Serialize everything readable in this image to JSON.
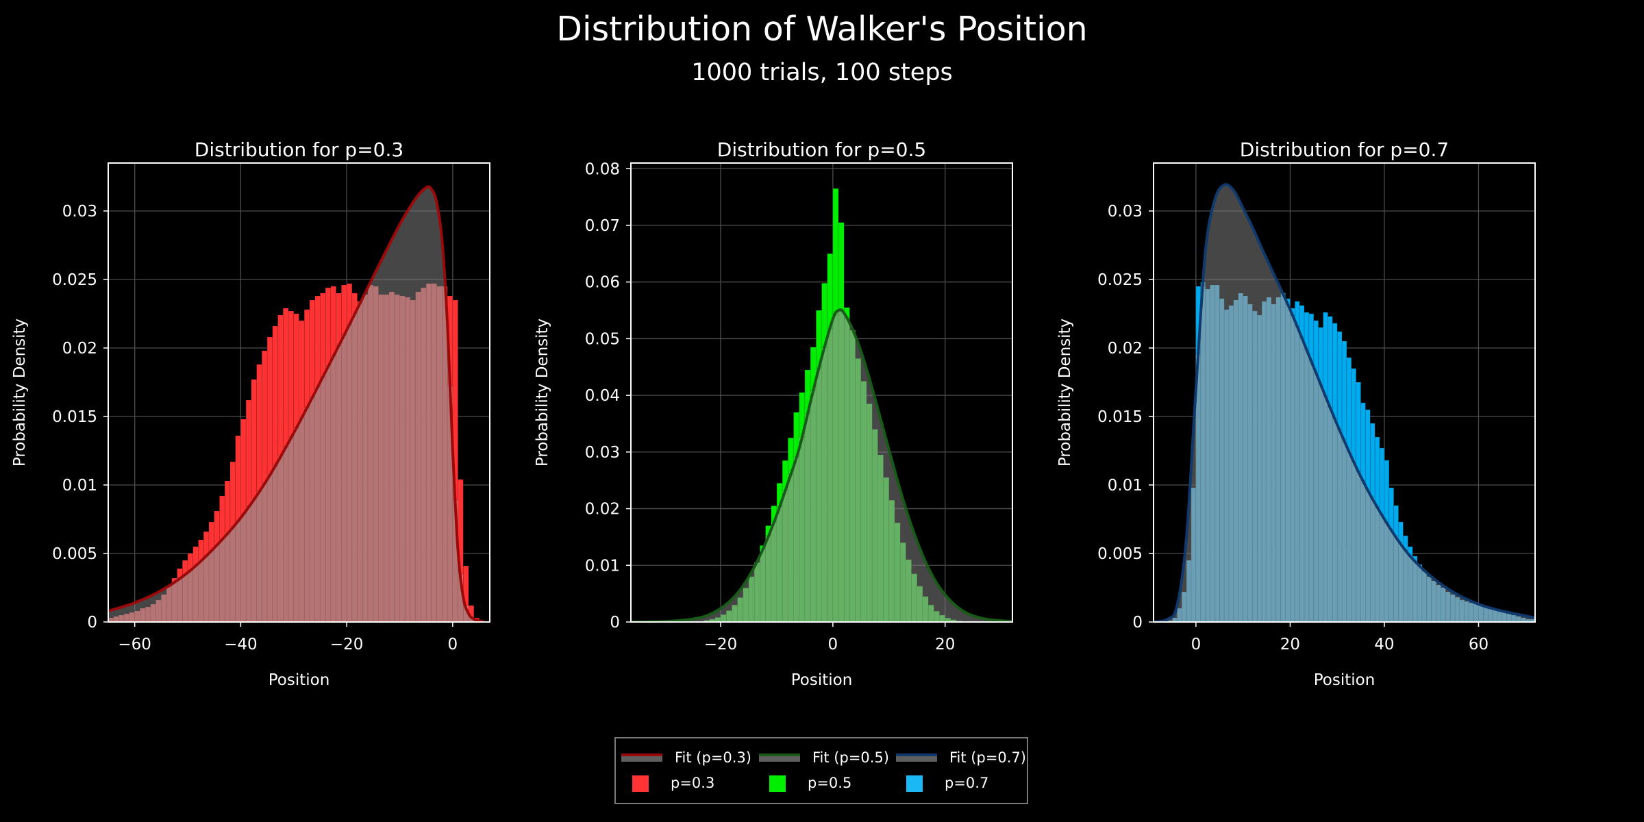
{
  "title": "Distribution of Walker's Position",
  "subtitle": "1000 trials, 100 steps",
  "chart_data": [
    {
      "type": "bar",
      "title": "Distribution for p=0.3",
      "xlabel": "Position",
      "ylabel": "Probability Density",
      "series_label": "p=0.3",
      "fit_label": "Fit (p=0.3)",
      "colors": {
        "bar": "#ff3333",
        "bar_in_fit": "#f66464",
        "fit_line": "#9b0a0a"
      },
      "xlim": [
        -65,
        7
      ],
      "ylim": [
        0,
        0.0335
      ],
      "xticks": [
        -60,
        -40,
        -20,
        0
      ],
      "xtick_labels": [
        "−60",
        "−40",
        "−20",
        "0"
      ],
      "yticks": [
        0,
        0.005,
        0.01,
        0.015,
        0.02,
        0.025,
        0.03
      ],
      "ytick_labels": [
        "0",
        "0.005",
        "0.01",
        "0.015",
        "0.02",
        "0.025",
        "0.03"
      ],
      "grid": true,
      "bin_width": 1,
      "x": [
        -65,
        -64,
        -63,
        -62,
        -61,
        -60,
        -59,
        -58,
        -57,
        -56,
        -55,
        -54,
        -53,
        -52,
        -51,
        -50,
        -49,
        -48,
        -47,
        -46,
        -45,
        -44,
        -43,
        -42,
        -41,
        -40,
        -39,
        -38,
        -37,
        -36,
        -35,
        -34,
        -33,
        -32,
        -31,
        -30,
        -29,
        -28,
        -27,
        -26,
        -25,
        -24,
        -23,
        -22,
        -21,
        -20,
        -19,
        -18,
        -17,
        -16,
        -15,
        -14,
        -13,
        -12,
        -11,
        -10,
        -9,
        -8,
        -7,
        -6,
        -5,
        -4,
        -3,
        -2,
        -1,
        0,
        1,
        2,
        3,
        4,
        5
      ],
      "values": [
        0.0003,
        0.0004,
        0.0005,
        0.0006,
        0.0007,
        0.0008,
        0.001,
        0.0011,
        0.0013,
        0.0016,
        0.002,
        0.0026,
        0.0032,
        0.0039,
        0.0045,
        0.005,
        0.0055,
        0.006,
        0.0066,
        0.0073,
        0.0081,
        0.0092,
        0.0103,
        0.0117,
        0.0136,
        0.0148,
        0.0162,
        0.0177,
        0.0188,
        0.0198,
        0.0208,
        0.0216,
        0.0224,
        0.0229,
        0.0227,
        0.0225,
        0.022,
        0.0228,
        0.0235,
        0.0238,
        0.024,
        0.0244,
        0.0245,
        0.024,
        0.0246,
        0.0247,
        0.024,
        0.0234,
        0.0239,
        0.0246,
        0.0245,
        0.0239,
        0.0239,
        0.0241,
        0.0239,
        0.0238,
        0.0237,
        0.0235,
        0.0241,
        0.0244,
        0.0247,
        0.0247,
        0.0245,
        0.0245,
        0.0238,
        0.0235,
        0.0104,
        0.0041,
        0.0012,
        0.0003,
        0.0001
      ],
      "fit_x": [
        -65,
        -60,
        -55,
        -50,
        -45,
        -40,
        -35,
        -30,
        -25,
        -20,
        -15,
        -10,
        -7,
        -5,
        -4,
        -3,
        -2,
        -1,
        0,
        1,
        2,
        3,
        4,
        5,
        6
      ],
      "fit_y": [
        0.0008,
        0.0014,
        0.0023,
        0.0036,
        0.0054,
        0.0076,
        0.0104,
        0.0138,
        0.0175,
        0.0213,
        0.0252,
        0.029,
        0.0309,
        0.0317,
        0.0316,
        0.0306,
        0.0278,
        0.0218,
        0.0126,
        0.0052,
        0.0018,
        0.0006,
        0.0002,
        0.0001,
        0.0
      ]
    },
    {
      "type": "bar",
      "title": "Distribution for p=0.5",
      "xlabel": "Position",
      "ylabel": "Probability Density",
      "series_label": "p=0.5",
      "fit_label": "Fit (p=0.5)",
      "colors": {
        "bar": "#00ee00",
        "bar_in_fit": "#44ee44",
        "fit_line": "#185a18"
      },
      "xlim": [
        -36,
        32
      ],
      "ylim": [
        0,
        0.081
      ],
      "xticks": [
        -20,
        0,
        20
      ],
      "xtick_labels": [
        "−20",
        "0",
        "20"
      ],
      "yticks": [
        0,
        0.01,
        0.02,
        0.03,
        0.04,
        0.05,
        0.06,
        0.07,
        0.08
      ],
      "ytick_labels": [
        "0",
        "0.01",
        "0.02",
        "0.03",
        "0.04",
        "0.05",
        "0.06",
        "0.07",
        "0.08"
      ],
      "grid": true,
      "bin_width": 1,
      "x": [
        -23,
        -22,
        -21,
        -20,
        -19,
        -18,
        -17,
        -16,
        -15,
        -14,
        -13,
        -12,
        -11,
        -10,
        -9,
        -8,
        -7,
        -6,
        -5,
        -4,
        -3,
        -2,
        -1,
        0,
        1,
        2,
        3,
        4,
        5,
        6,
        7,
        8,
        9,
        10,
        11,
        12,
        13,
        14,
        15,
        16,
        17,
        18,
        19,
        20,
        21,
        22
      ],
      "values": [
        0.0003,
        0.0005,
        0.0008,
        0.0013,
        0.002,
        0.003,
        0.0043,
        0.006,
        0.008,
        0.0105,
        0.0135,
        0.017,
        0.0205,
        0.0245,
        0.0285,
        0.0325,
        0.037,
        0.0405,
        0.0445,
        0.0485,
        0.055,
        0.0598,
        0.065,
        0.0765,
        0.0705,
        0.0555,
        0.0515,
        0.0465,
        0.0425,
        0.0385,
        0.034,
        0.0295,
        0.0255,
        0.0215,
        0.0175,
        0.014,
        0.011,
        0.0085,
        0.0063,
        0.0045,
        0.003,
        0.0019,
        0.0012,
        0.0007,
        0.0004,
        0.0002
      ],
      "fit_x": [
        -36,
        -30,
        -26,
        -24,
        -22,
        -20,
        -18,
        -16,
        -14,
        -12,
        -10,
        -8,
        -6,
        -4,
        -2,
        0,
        1,
        2,
        4,
        6,
        8,
        10,
        12,
        14,
        16,
        18,
        20,
        22,
        24,
        26,
        28,
        32
      ],
      "fit_y": [
        0.0,
        0.0001,
        0.0004,
        0.0007,
        0.0013,
        0.0024,
        0.004,
        0.0064,
        0.0097,
        0.0139,
        0.0189,
        0.0246,
        0.0306,
        0.0388,
        0.0467,
        0.0535,
        0.055,
        0.0545,
        0.0505,
        0.0447,
        0.0377,
        0.0304,
        0.0233,
        0.017,
        0.0118,
        0.0077,
        0.0048,
        0.0028,
        0.0015,
        0.0008,
        0.0004,
        0.0001
      ]
    },
    {
      "type": "bar",
      "title": "Distribution for p=0.7",
      "xlabel": "Position",
      "ylabel": "Probability Density",
      "series_label": "p=0.7",
      "fit_label": "Fit (p=0.7)",
      "colors": {
        "bar": "#00aaee",
        "bar_in_fit": "#4ec3f5",
        "fit_line": "#103a6e"
      },
      "xlim": [
        -9,
        72
      ],
      "ylim": [
        0,
        0.0335
      ],
      "xticks": [
        0,
        20,
        40,
        60
      ],
      "xtick_labels": [
        "0",
        "20",
        "40",
        "60"
      ],
      "yticks": [
        0,
        0.005,
        0.01,
        0.015,
        0.02,
        0.025,
        0.03
      ],
      "ytick_labels": [
        "0",
        "0.005",
        "0.01",
        "0.015",
        "0.02",
        "0.025",
        "0.03"
      ],
      "grid": true,
      "bin_width": 1,
      "x": [
        -6,
        -5,
        -4,
        -3,
        -2,
        -1,
        0,
        1,
        2,
        3,
        4,
        5,
        6,
        7,
        8,
        9,
        10,
        11,
        12,
        13,
        14,
        15,
        16,
        17,
        18,
        19,
        20,
        21,
        22,
        23,
        24,
        25,
        26,
        27,
        28,
        29,
        30,
        31,
        32,
        33,
        34,
        35,
        36,
        37,
        38,
        39,
        40,
        41,
        42,
        43,
        44,
        45,
        46,
        47,
        48,
        49,
        50,
        51,
        52,
        53,
        54,
        55,
        56,
        57,
        58,
        59,
        60,
        61,
        62,
        63,
        64,
        65,
        66,
        67,
        68,
        69,
        70,
        71
      ],
      "values": [
        0.0001,
        0.0003,
        0.001,
        0.0022,
        0.0045,
        0.0098,
        0.0245,
        0.0248,
        0.0243,
        0.0246,
        0.0246,
        0.0236,
        0.0228,
        0.0231,
        0.0235,
        0.024,
        0.0238,
        0.0232,
        0.0227,
        0.0224,
        0.0234,
        0.0237,
        0.0232,
        0.0237,
        0.024,
        0.0236,
        0.0229,
        0.0234,
        0.0231,
        0.0226,
        0.0225,
        0.022,
        0.0215,
        0.0226,
        0.0223,
        0.0218,
        0.0212,
        0.0205,
        0.0193,
        0.0185,
        0.0175,
        0.016,
        0.0155,
        0.0145,
        0.0135,
        0.0127,
        0.0118,
        0.0098,
        0.0085,
        0.0073,
        0.0063,
        0.0055,
        0.0048,
        0.0042,
        0.0037,
        0.0033,
        0.003,
        0.0027,
        0.0025,
        0.0022,
        0.002,
        0.0018,
        0.0016,
        0.0015,
        0.0014,
        0.0013,
        0.0012,
        0.0011,
        0.001,
        0.0009,
        0.0008,
        0.0007,
        0.0006,
        0.0005,
        0.0004,
        0.0003,
        0.0002,
        0.0002
      ],
      "fit_x": [
        -9,
        -6,
        -4,
        -2,
        0,
        2,
        4,
        6,
        8,
        10,
        12,
        15,
        20,
        25,
        30,
        35,
        40,
        45,
        50,
        55,
        60,
        65,
        72
      ],
      "fit_y": [
        0.0,
        0.0002,
        0.0012,
        0.0062,
        0.017,
        0.027,
        0.0308,
        0.0319,
        0.0315,
        0.0302,
        0.0288,
        0.0265,
        0.0228,
        0.0186,
        0.0144,
        0.0106,
        0.0075,
        0.005,
        0.0033,
        0.0021,
        0.0013,
        0.0008,
        0.0003
      ]
    }
  ],
  "legend": {
    "location": "bottom-center",
    "entries": [
      {
        "label": "Fit (p=0.3)",
        "kind": "line",
        "color": "#9b0a0a"
      },
      {
        "label": "Fit (p=0.5)",
        "kind": "line",
        "color": "#185a18"
      },
      {
        "label": "Fit (p=0.7)",
        "kind": "line",
        "color": "#103a6e"
      },
      {
        "label": "p=0.3",
        "kind": "patch",
        "color": "#ff3333"
      },
      {
        "label": "p=0.5",
        "kind": "patch",
        "color": "#00ee00"
      },
      {
        "label": "p=0.7",
        "kind": "patch",
        "color": "#1ab8f4"
      }
    ]
  }
}
